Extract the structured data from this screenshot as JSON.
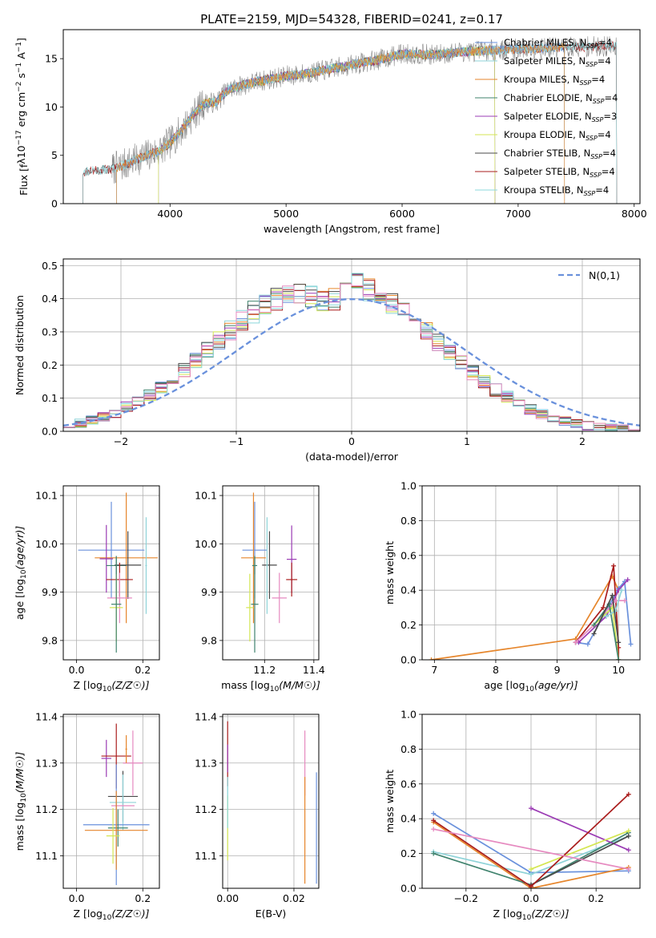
{
  "figure": {
    "title": "PLATE=2159, MJD=54328, FIBERID=0241, z=0.17"
  },
  "colors": {
    "Chabrier MILES": "#6a91dc",
    "Salpeter MILES": "#8fd3d8",
    "Kroupa MILES": "#e6862c",
    "Chabrier ELODIE": "#40836e",
    "Salpeter ELODIE": "#9b3cb4",
    "Kroupa ELODIE": "#d4e653",
    "Chabrier STELIB": "#4a4a4a",
    "Salpeter STELIB": "#aa1d1d",
    "Kroupa STELIB": "#8cd8dc",
    "pink": "#e68ac0",
    "grid": "#b0b0b0",
    "gaussian": "#6a91dc"
  },
  "chart_data": [
    {
      "id": "spectrum",
      "type": "line",
      "xlabel": "wavelength [Angstrom, rest frame]",
      "ylabel": "Flux [f_λ10^-17 erg cm^-2 s^-1 A^-1]",
      "xlim": [
        3080,
        8050
      ],
      "ylim": [
        0,
        18
      ],
      "xticks": [
        4000,
        5000,
        6000,
        7000,
        8000
      ],
      "yticks": [
        0,
        5,
        10,
        15
      ],
      "grid": false,
      "legend_position": "top-right",
      "legend": [
        {
          "name": "Chabrier MILES",
          "nssp": "4",
          "colorKey": "Chabrier MILES"
        },
        {
          "name": "Salpeter MILES",
          "nssp": "4",
          "colorKey": "Salpeter MILES"
        },
        {
          "name": "Kroupa MILES",
          "nssp": "4",
          "colorKey": "Kroupa MILES"
        },
        {
          "name": "Chabrier ELODIE",
          "nssp": "4",
          "colorKey": "Chabrier ELODIE"
        },
        {
          "name": "Salpeter ELODIE",
          "nssp": "3",
          "colorKey": "Salpeter ELODIE"
        },
        {
          "name": "Kroupa ELODIE",
          "nssp": "4",
          "colorKey": "Kroupa ELODIE"
        },
        {
          "name": "Chabrier STELIB",
          "nssp": "4",
          "colorKey": "Chabrier STELIB"
        },
        {
          "name": "Salpeter STELIB",
          "nssp": "4",
          "colorKey": "Salpeter STELIB"
        },
        {
          "name": "Kroupa STELIB",
          "nssp": "4",
          "colorKey": "Kroupa STELIB"
        }
      ],
      "continuum": [
        [
          3250,
          3.3
        ],
        [
          3500,
          3.6
        ],
        [
          3600,
          4.0
        ],
        [
          3700,
          4.5
        ],
        [
          3800,
          5.0
        ],
        [
          3900,
          5.4
        ],
        [
          4000,
          6.3
        ],
        [
          4100,
          7.6
        ],
        [
          4200,
          9.2
        ],
        [
          4300,
          10.4
        ],
        [
          4400,
          10.5
        ],
        [
          4500,
          11.8
        ],
        [
          4700,
          12.5
        ],
        [
          5000,
          13.2
        ],
        [
          5200,
          13.5
        ],
        [
          5500,
          14.2
        ],
        [
          5800,
          14.9
        ],
        [
          6000,
          15.5
        ],
        [
          6300,
          15.4
        ],
        [
          6500,
          15.7
        ],
        [
          7000,
          16.0
        ],
        [
          7500,
          16.2
        ],
        [
          7850,
          16.3
        ]
      ],
      "range_starts": {
        "MILES": 3540,
        "ELODIE": 3900,
        "STELIB": 3250
      },
      "range_ends": {
        "MILES": 7400,
        "ELODIE": 6800,
        "STELIB": 7850
      }
    },
    {
      "id": "residuals",
      "type": "histogram",
      "xlabel": "(data-model)/error",
      "ylabel": "Normed distribution",
      "xlim": [
        -2.5,
        2.5
      ],
      "ylim": [
        0,
        0.52
      ],
      "xticks": [
        -2,
        -1,
        0,
        1,
        2
      ],
      "yticks": [
        0.0,
        0.1,
        0.2,
        0.3,
        0.4,
        0.5
      ],
      "grid": true,
      "legend_position": "top-right",
      "legend": [
        {
          "name": "N(0,1)",
          "style": "dashed"
        }
      ],
      "bin_width": 0.1,
      "bin_start": -2.5,
      "base_series": [
        0.017,
        0.024,
        0.033,
        0.044,
        0.057,
        0.073,
        0.09,
        0.11,
        0.133,
        0.158,
        0.186,
        0.215,
        0.246,
        0.276,
        0.306,
        0.334,
        0.36,
        0.382,
        0.396,
        0.41,
        0.42,
        0.405,
        0.395,
        0.4,
        0.42,
        0.44,
        0.43,
        0.42,
        0.39,
        0.355,
        0.327,
        0.3,
        0.269,
        0.238,
        0.207,
        0.178,
        0.15,
        0.125,
        0.103,
        0.083,
        0.067,
        0.052,
        0.04,
        0.031,
        0.023,
        0.017,
        0.013,
        0.01,
        0.008,
        0.006
      ]
    },
    {
      "id": "z-age",
      "type": "errorbar",
      "xlabel": "Z [log10(Z/Z☉)]",
      "ylabel": "age [log10(age/yr)]",
      "xlim": [
        -0.04,
        0.25
      ],
      "ylim": [
        9.76,
        10.12
      ],
      "xticks": [
        0.0,
        0.2
      ],
      "yticks": [
        9.8,
        9.9,
        10.0,
        10.1
      ],
      "grid": true,
      "points": [
        {
          "series": "Chabrier MILES",
          "x": 0.105,
          "y": 9.987,
          "xerr": 0.2,
          "yerr": 0.1
        },
        {
          "series": "Kroupa MILES",
          "x": 0.15,
          "y": 9.971,
          "xerr": 0.19,
          "yerr": 0.135
        },
        {
          "series": "Salpeter ELODIE",
          "x": 0.09,
          "y": 9.969,
          "xerr": 0.04,
          "yerr": 0.07
        },
        {
          "series": "Chabrier ELODIE",
          "x": 0.12,
          "y": 9.955,
          "xerr": 0.06,
          "yerr": 0.018
        },
        {
          "series": "Chabrier STELIB",
          "x": 0.155,
          "y": 9.956,
          "xerr": 0.08,
          "yerr": 0.07
        },
        {
          "series": "Salpeter STELIB",
          "x": 0.13,
          "y": 9.926,
          "xerr": 0.08,
          "yerr": 0.035
        },
        {
          "series": "pink",
          "x": 0.13,
          "y": 9.888,
          "xerr": 0.075,
          "yerr": 0.052
        },
        {
          "series": "Kroupa ELODIE",
          "x": 0.12,
          "y": 9.868,
          "xerr": 0.04,
          "yerr": 0.07
        },
        {
          "series": "Chabrier ELODIE",
          "x": 0.12,
          "y": 9.875,
          "xerr": 0.03,
          "yerr": 0.1
        },
        {
          "series": "Salpeter MILES",
          "x": 0.21,
          "y": 9.955,
          "xerr": 0.005,
          "yerr": 0.1
        }
      ]
    },
    {
      "id": "mass-age",
      "type": "errorbar",
      "xlabel": "mass [log10(M/M☉)]",
      "ylabel": "",
      "xlim": [
        11.03,
        11.42
      ],
      "ylim": [
        9.76,
        10.12
      ],
      "xticks": [
        11.2,
        11.4
      ],
      "yticks": [
        9.8,
        9.9,
        10.0,
        10.1
      ],
      "grid": true,
      "points": [
        {
          "series": "Chabrier MILES",
          "x": 11.16,
          "y": 9.987,
          "xerr": 0.1,
          "yerr": 0.1
        },
        {
          "series": "Kroupa MILES",
          "x": 11.155,
          "y": 9.971,
          "xerr": 0.1,
          "yerr": 0.135
        },
        {
          "series": "Salpeter ELODIE",
          "x": 11.31,
          "y": 9.968,
          "xerr": 0.04,
          "yerr": 0.07
        },
        {
          "series": "Chabrier STELIB",
          "x": 11.22,
          "y": 9.956,
          "xerr": 0.06,
          "yerr": 0.07
        },
        {
          "series": "Chabrier ELODIE",
          "x": 11.16,
          "y": 9.955,
          "xerr": 0.02,
          "yerr": 0.018
        },
        {
          "series": "Salpeter STELIB",
          "x": 11.31,
          "y": 9.926,
          "xerr": 0.045,
          "yerr": 0.035
        },
        {
          "series": "pink",
          "x": 11.26,
          "y": 9.888,
          "xerr": 0.06,
          "yerr": 0.052
        },
        {
          "series": "Chabrier ELODIE",
          "x": 11.16,
          "y": 9.875,
          "xerr": 0.03,
          "yerr": 0.1
        },
        {
          "series": "Kroupa ELODIE",
          "x": 11.14,
          "y": 9.868,
          "xerr": 0.03,
          "yerr": 0.07
        },
        {
          "series": "Salpeter MILES",
          "x": 11.21,
          "y": 9.955,
          "xerr": 0.005,
          "yerr": 0.1
        }
      ]
    },
    {
      "id": "age-weight",
      "type": "line",
      "xlabel": "age [log10(age/yr)]",
      "ylabel": "mass weight",
      "xlim": [
        6.8,
        10.35
      ],
      "ylim": [
        0,
        1.0
      ],
      "xticks": [
        7,
        8,
        9,
        10
      ],
      "yticks": [
        0.0,
        0.2,
        0.4,
        0.6,
        0.8,
        1.0
      ],
      "grid": true,
      "series": [
        {
          "name": "Kroupa MILES",
          "x": [
            6.95,
            9.3,
            9.9,
            10.0
          ],
          "y": [
            0.0,
            0.12,
            0.48,
            0.4
          ]
        },
        {
          "name": "Chabrier MILES",
          "x": [
            9.3,
            9.5,
            10.0,
            10.1,
            10.2
          ],
          "y": [
            0.1,
            0.09,
            0.41,
            0.45,
            0.09
          ]
        },
        {
          "name": "Salpeter STELIB",
          "x": [
            9.3,
            9.75,
            9.92,
            10.0,
            10.0
          ],
          "y": [
            0.1,
            0.3,
            0.54,
            0.07,
            0.0
          ]
        },
        {
          "name": "Salpeter ELODIE",
          "x": [
            9.35,
            9.8,
            10.0,
            10.15
          ],
          "y": [
            0.1,
            0.25,
            0.4,
            0.46
          ]
        },
        {
          "name": "pink",
          "x": [
            9.3,
            9.6,
            9.95,
            10.1
          ],
          "y": [
            0.1,
            0.2,
            0.34,
            0.34
          ]
        },
        {
          "name": "Kroupa ELODIE",
          "x": [
            9.6,
            9.9,
            10.0
          ],
          "y": [
            0.2,
            0.3,
            0.0
          ]
        },
        {
          "name": "Chabrier ELODIE",
          "x": [
            9.6,
            9.85,
            10.0
          ],
          "y": [
            0.2,
            0.32,
            0.0
          ]
        },
        {
          "name": "Salpeter MILES",
          "x": [
            9.8,
            9.95,
            10.05
          ],
          "y": [
            0.25,
            0.28,
            0.4
          ]
        },
        {
          "name": "Chabrier STELIB",
          "x": [
            9.6,
            9.9,
            10.0
          ],
          "y": [
            0.15,
            0.37,
            0.1
          ]
        }
      ]
    },
    {
      "id": "z-mass",
      "type": "errorbar",
      "xlabel": "Z [log10(Z/Z☉)]",
      "ylabel": "mass [log10(M/M☉)]",
      "xlim": [
        -0.04,
        0.25
      ],
      "ylim": [
        11.03,
        11.405
      ],
      "xticks": [
        0.0,
        0.2
      ],
      "yticks": [
        11.1,
        11.2,
        11.3,
        11.4
      ],
      "grid": true,
      "points": [
        {
          "series": "Salpeter ELODIE",
          "x": 0.09,
          "y": 11.31,
          "xerr": 0.03,
          "yerr": 0.04
        },
        {
          "series": "Salpeter STELIB",
          "x": 0.12,
          "y": 11.315,
          "xerr": 0.09,
          "yerr": 0.07
        },
        {
          "series": "pink",
          "x": 0.17,
          "y": 11.3,
          "xerr": 0.06,
          "yerr": 0.07
        },
        {
          "series": "Kroupa MILES",
          "x": 0.15,
          "y": 11.33,
          "xerr": 0.005,
          "yerr": 0.03
        },
        {
          "series": "Chabrier STELIB",
          "x": 0.14,
          "y": 11.228,
          "xerr": 0.09,
          "yerr": 0.055
        },
        {
          "series": "Salpeter MILES",
          "x": 0.14,
          "y": 11.215,
          "xerr": 0.08,
          "yerr": 0.06
        },
        {
          "series": "pink",
          "x": 0.14,
          "y": 11.208,
          "xerr": 0.07,
          "yerr": 0.0
        },
        {
          "series": "Chabrier MILES",
          "x": 0.12,
          "y": 11.167,
          "xerr": 0.2,
          "yerr": 0.13
        },
        {
          "series": "Chabrier ELODIE",
          "x": 0.125,
          "y": 11.16,
          "xerr": 0.06,
          "yerr": 0.04
        },
        {
          "series": "Kroupa MILES",
          "x": 0.12,
          "y": 11.155,
          "xerr": 0.19,
          "yerr": 0.085
        },
        {
          "series": "Kroupa ELODIE",
          "x": 0.11,
          "y": 11.143,
          "xerr": 0.04,
          "yerr": 0.06
        }
      ]
    },
    {
      "id": "ebv-mass",
      "type": "errorbar",
      "xlabel": "E(B-V)",
      "ylabel": "",
      "xlim": [
        -0.0015,
        0.0275
      ],
      "ylim": [
        11.03,
        11.405
      ],
      "xticks": [
        0.0,
        0.02
      ],
      "yticks": [
        11.1,
        11.2,
        11.3,
        11.4
      ],
      "grid": true,
      "points": [
        {
          "series": "Salpeter STELIB",
          "x": 0.0,
          "y": 11.32,
          "xerr": 0,
          "yerr": 0.07
        },
        {
          "series": "Salpeter ELODIE",
          "x": 0.0,
          "y": 11.31,
          "xerr": 0,
          "yerr": 0.03
        },
        {
          "series": "Kroupa ELODIE",
          "x": 0.0,
          "y": 11.16,
          "xerr": 0,
          "yerr": 0.07
        },
        {
          "series": "Kroupa STELIB",
          "x": 0.0,
          "y": 11.215,
          "xerr": 0,
          "yerr": 0.055
        },
        {
          "series": "pink",
          "x": 0.0233,
          "y": 11.3,
          "xerr": 0,
          "yerr": 0.07
        },
        {
          "series": "Kroupa MILES",
          "x": 0.0233,
          "y": 11.155,
          "xerr": 0,
          "yerr": 0.115
        },
        {
          "series": "Chabrier MILES",
          "x": 0.0268,
          "y": 11.16,
          "xerr": 0,
          "yerr": 0.12
        }
      ]
    },
    {
      "id": "z-weight",
      "type": "line",
      "xlabel": "Z [log10(Z/Z☉)]",
      "ylabel": "mass weight",
      "xlim": [
        -0.335,
        0.335
      ],
      "ylim": [
        0,
        1.0
      ],
      "xticks": [
        -0.2,
        0.0,
        0.2
      ],
      "yticks": [
        0.0,
        0.2,
        0.4,
        0.6,
        0.8,
        1.0
      ],
      "grid": true,
      "series": [
        {
          "name": "Chabrier MILES",
          "x": [
            -0.3,
            0.0,
            0.3
          ],
          "y": [
            0.43,
            0.09,
            0.1
          ]
        },
        {
          "name": "Salpeter MILES",
          "x": [
            -0.3,
            0.0,
            0.3
          ],
          "y": [
            0.21,
            0.08,
            0.3
          ]
        },
        {
          "name": "Kroupa MILES",
          "x": [
            -0.3,
            0.0,
            0.3
          ],
          "y": [
            0.38,
            0.0,
            0.12
          ]
        },
        {
          "name": "Chabrier ELODIE",
          "x": [
            -0.3,
            0.0,
            0.3
          ],
          "y": [
            0.2,
            0.02,
            0.32
          ]
        },
        {
          "name": "Salpeter ELODIE",
          "x": [
            0.0,
            0.3
          ],
          "y": [
            0.46,
            0.22
          ]
        },
        {
          "name": "Kroupa ELODIE",
          "x": [
            0.0,
            0.3
          ],
          "y": [
            0.11,
            0.33
          ]
        },
        {
          "name": "Chabrier STELIB",
          "x": [
            0.0,
            0.3
          ],
          "y": [
            0.02,
            0.3
          ]
        },
        {
          "name": "Salpeter STELIB",
          "x": [
            -0.3,
            0.0,
            0.3
          ],
          "y": [
            0.39,
            0.01,
            0.54
          ]
        },
        {
          "name": "pink",
          "x": [
            -0.3,
            0.3
          ],
          "y": [
            0.34,
            0.11
          ]
        }
      ]
    }
  ]
}
